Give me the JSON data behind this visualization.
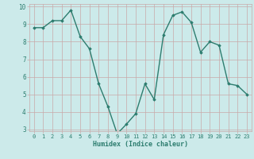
{
  "x": [
    0,
    1,
    2,
    3,
    4,
    5,
    6,
    7,
    8,
    9,
    10,
    11,
    12,
    13,
    14,
    15,
    16,
    17,
    18,
    19,
    20,
    21,
    22,
    23
  ],
  "y": [
    8.8,
    8.8,
    9.2,
    9.2,
    9.8,
    8.3,
    7.6,
    5.6,
    4.3,
    2.75,
    3.3,
    3.9,
    5.6,
    4.7,
    8.4,
    9.5,
    9.7,
    9.1,
    7.4,
    8.0,
    7.8,
    5.6,
    5.5,
    5.0
  ],
  "xlabel": "Humidex (Indice chaleur)",
  "ylim": [
    3,
    10
  ],
  "xlim": [
    -0.5,
    23.5
  ],
  "yticks": [
    3,
    4,
    5,
    6,
    7,
    8,
    9,
    10
  ],
  "xticks": [
    0,
    1,
    2,
    3,
    4,
    5,
    6,
    7,
    8,
    9,
    10,
    11,
    12,
    13,
    14,
    15,
    16,
    17,
    18,
    19,
    20,
    21,
    22,
    23
  ],
  "line_color": "#2d7d6f",
  "marker": "D",
  "marker_size": 1.8,
  "bg_color": "#cceaea",
  "grid_color": "#c8a8a8",
  "tick_label_color": "#2d7d6f",
  "axis_label_color": "#2d7d6f",
  "line_width": 1.0,
  "tick_fontsize": 5.0,
  "xlabel_fontsize": 6.0
}
